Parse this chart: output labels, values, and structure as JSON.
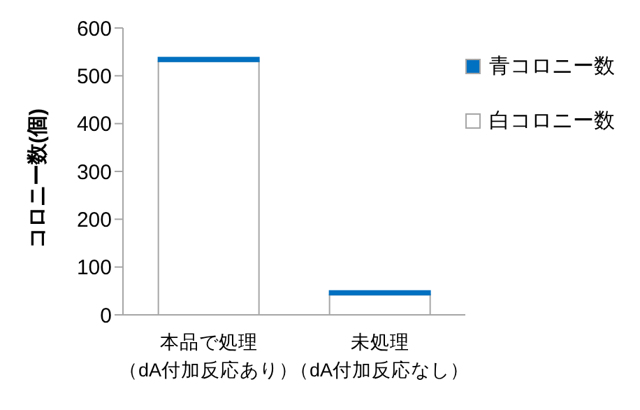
{
  "chart_data": {
    "type": "bar",
    "stacked": true,
    "ylabel": "コロニー数(個)",
    "categories": [
      "本品で処理（dA付加反応あり）",
      "未処理（dA付加反応なし）"
    ],
    "series": [
      {
        "name": "白コロニー数",
        "color": "#ffffff",
        "values": [
          530,
          42
        ]
      },
      {
        "name": "青コロニー数",
        "color": "#0070c0",
        "values": [
          8,
          8
        ]
      }
    ],
    "ylim": [
      0,
      600
    ],
    "yticks": [
      0,
      100,
      200,
      300,
      400,
      500,
      600
    ],
    "grid": false,
    "legend": "right"
  }
}
